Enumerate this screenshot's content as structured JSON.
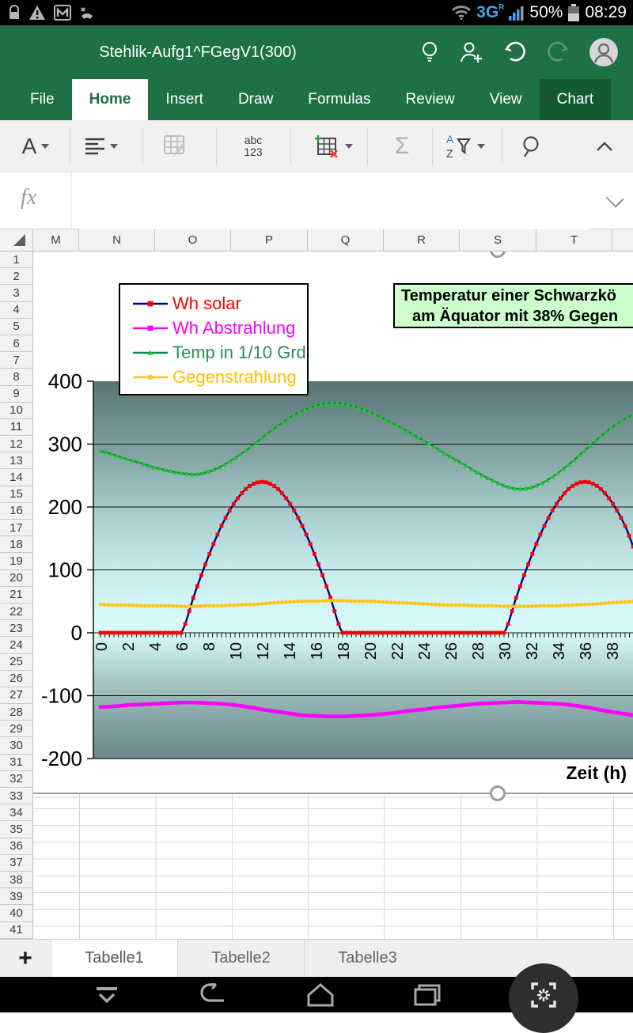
{
  "status_bar": {
    "time": "08:29",
    "battery_percent": "50%",
    "network": "3G",
    "network_badge": "R",
    "left_icons": [
      "lock-icon",
      "warning-icon",
      "mail-icon",
      "call-icon"
    ],
    "right_icons": [
      "wifi-icon",
      "signal-bars-icon",
      "battery-icon"
    ]
  },
  "title_bar": {
    "title": "Stehlik-Aufg1^FGegV1(300)",
    "icons": [
      "lightbulb-icon",
      "share-person-icon",
      "undo-icon",
      "redo-icon",
      "avatar"
    ]
  },
  "ribbon": {
    "tabs": [
      {
        "label": "File"
      },
      {
        "label": "Home",
        "state": "active"
      },
      {
        "label": "Insert"
      },
      {
        "label": "Draw"
      },
      {
        "label": "Formulas"
      },
      {
        "label": "Review"
      },
      {
        "label": "View"
      },
      {
        "label": "Chart",
        "state": "context"
      }
    ]
  },
  "toolbar": {
    "font_letter": "A",
    "number_format_line1": "abc",
    "number_format_line2": "123",
    "sigma": "Σ",
    "sort_a": "A",
    "sort_z": "Z",
    "icons": [
      "font-color-button",
      "alignment-button",
      "fill-button",
      "number-format-button",
      "insert-delete-cells-button",
      "autosum-button",
      "sort-filter-button",
      "search-button",
      "collapse-ribbon-button"
    ]
  },
  "formula_bar": {
    "fx_label": "fx",
    "value": ""
  },
  "grid": {
    "columns": [
      "M",
      "N",
      "O",
      "P",
      "Q",
      "R",
      "S",
      "T"
    ],
    "rows": [
      1,
      2,
      3,
      4,
      5,
      6,
      7,
      8,
      9,
      10,
      11,
      12,
      13,
      14,
      15,
      16,
      17,
      18,
      19,
      20,
      21,
      22,
      23,
      24,
      25,
      26,
      27,
      28,
      29,
      30,
      31,
      32,
      33,
      34,
      35,
      36,
      37,
      38,
      39,
      40,
      41
    ]
  },
  "sheet_tabs": {
    "add_label": "+",
    "tabs": [
      "Tabelle1",
      "Tabelle2",
      "Tabelle3"
    ],
    "active": "Tabelle1"
  },
  "colors": {
    "excel_green": "#1e7145",
    "context_tab_green": "#165a35",
    "chart_title_bg": "#ccffcc",
    "status_blue": "#49a0e8"
  },
  "chart_data": {
    "type": "line",
    "title_lines": [
      "Temperatur einer Schwarzkö",
      "am Äquator mit 38% Gegen"
    ],
    "xlabel": "Zeit (h)",
    "x_start": 0,
    "x_step": 1,
    "x_tick_step": 2,
    "x_minor_tick_step": 0.3333,
    "x_visible_max": 40,
    "ylim": [
      -200,
      400
    ],
    "y_ticks": [
      400,
      300,
      200,
      100,
      0,
      -100,
      -200
    ],
    "grid": true,
    "legend_position": "top-left",
    "plot_gradient": [
      "#587474",
      "#7b9a9a",
      "#a3c8c8",
      "#c6ebeb",
      "#d7f9f9",
      "#d7f9f9",
      "#abcccc",
      "#83a2a2",
      "#6a8686"
    ],
    "series": [
      {
        "name": "Wh solar",
        "line_color": "#00008b",
        "marker": "square",
        "marker_color": "#ff0000",
        "label_color": "#ff0000",
        "line_width": 2.4,
        "marker_step": 0.25,
        "marker_size": 2.4,
        "clamp_min": 0,
        "values": [
          0,
          0,
          0,
          0,
          0,
          0,
          0,
          62,
          120,
          170,
          208,
          232,
          240,
          232,
          208,
          170,
          120,
          62,
          0,
          0,
          0,
          0,
          0,
          0,
          0,
          0,
          0,
          0,
          0,
          0,
          0,
          62,
          120,
          170,
          208,
          232,
          240,
          232,
          208,
          170,
          120
        ]
      },
      {
        "name": "Wh Abstrahlung",
        "line_color": "#ff00ff",
        "marker": "square",
        "marker_color": "#ff00ff",
        "label_color": "#ff00ff",
        "line_width": 4.5,
        "marker_step": 0.3,
        "marker_size": 2.2,
        "values": [
          -118,
          -117,
          -115,
          -114,
          -113,
          -112,
          -111,
          -111,
          -112,
          -113,
          -115,
          -118,
          -122,
          -125,
          -128,
          -131,
          -132,
          -133,
          -133,
          -132,
          -131,
          -129,
          -127,
          -124,
          -122,
          -119,
          -117,
          -115,
          -113,
          -112,
          -111,
          -110,
          -111,
          -112,
          -113,
          -115,
          -118,
          -122,
          -126,
          -129,
          -132
        ]
      },
      {
        "name": "Temp in 1/10 Grd",
        "line_color": "#118a43",
        "marker": "triangle",
        "marker_color": "#25c236",
        "label_color": "#2e8b57",
        "line_width": 2.2,
        "marker_step": 0.4,
        "marker_size": 3.2,
        "values": [
          289,
          283,
          276,
          270,
          263,
          258,
          254,
          252,
          256,
          265,
          278,
          293,
          310,
          326,
          341,
          353,
          361,
          365,
          364,
          359,
          351,
          341,
          330,
          318,
          306,
          293,
          280,
          268,
          255,
          244,
          234,
          229,
          231,
          240,
          254,
          271,
          290,
          309,
          326,
          340,
          350
        ]
      },
      {
        "name": "Gegenstrahlung",
        "line_color": "#ffc61a",
        "marker": "circle",
        "marker_color": "#ffc61a",
        "label_color": "#ffc000",
        "line_width": 2.6,
        "marker_step": 0.3,
        "marker_size": 2.4,
        "values": [
          45,
          44,
          44,
          43,
          43,
          43,
          42,
          42,
          43,
          43,
          44,
          45,
          46,
          48,
          49,
          50,
          50,
          51,
          51,
          50,
          50,
          49,
          48,
          47,
          46,
          45,
          44,
          44,
          43,
          43,
          42,
          42,
          42,
          43,
          43,
          44,
          45,
          46,
          48,
          49,
          50
        ]
      }
    ]
  }
}
